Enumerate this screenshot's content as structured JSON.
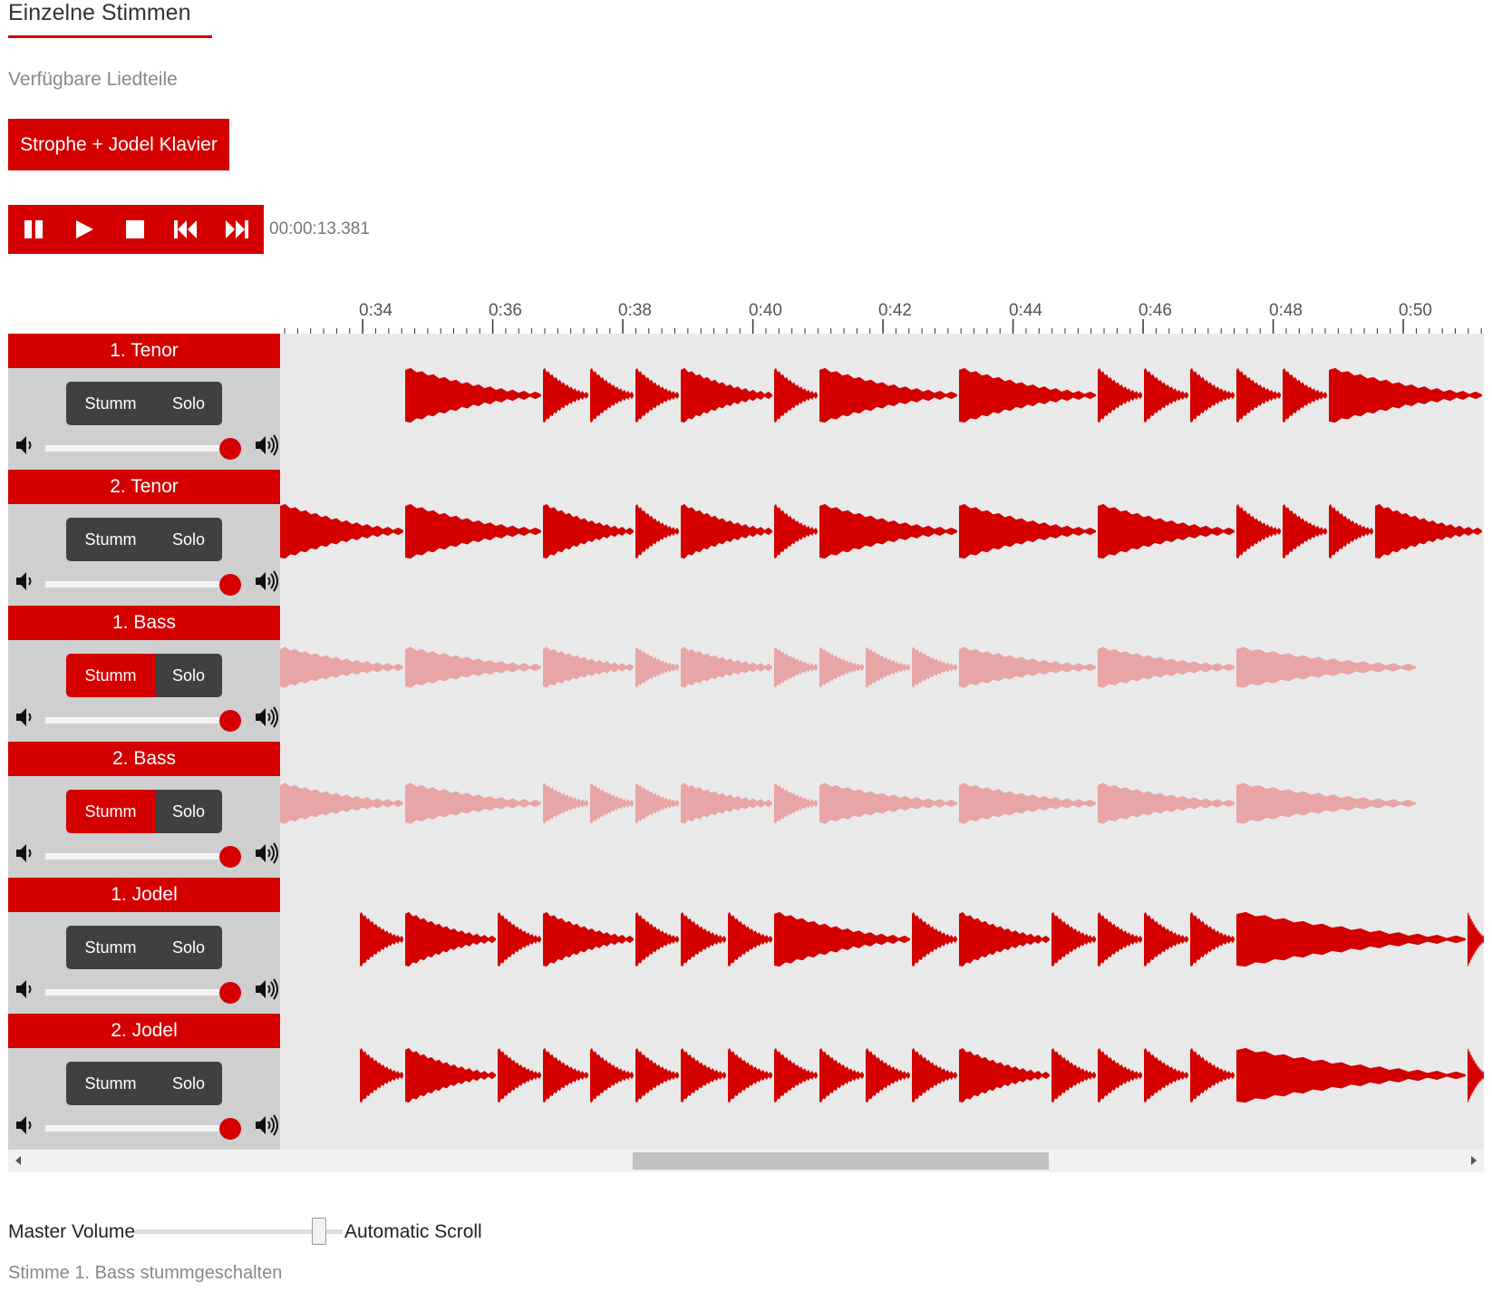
{
  "title": "Einzelne Stimmen",
  "subtitle": "Verfügbare Liedteile",
  "part_button": "Strophe + Jodel Klavier",
  "transport": {
    "buttons": [
      "pause-icon",
      "play-icon",
      "stop-icon",
      "skip-back-icon",
      "skip-forward-icon"
    ],
    "time": "00:00:13.381"
  },
  "timeline": {
    "labels": [
      "0:34",
      "0:36",
      "0:38",
      "0:40",
      "0:42",
      "0:44",
      "0:46",
      "0:48",
      "0:50"
    ]
  },
  "tracks": [
    {
      "name": "1. Tenor",
      "mute_label": "Stumm",
      "solo_label": "Solo",
      "muted": false,
      "volume": 1.0
    },
    {
      "name": "2. Tenor",
      "mute_label": "Stumm",
      "solo_label": "Solo",
      "muted": false,
      "volume": 1.0
    },
    {
      "name": "1. Bass",
      "mute_label": "Stumm",
      "solo_label": "Solo",
      "muted": true,
      "volume": 1.0
    },
    {
      "name": "2. Bass",
      "mute_label": "Stumm",
      "solo_label": "Solo",
      "muted": true,
      "volume": 1.0
    },
    {
      "name": "1. Jodel",
      "mute_label": "Stumm",
      "solo_label": "Solo",
      "muted": false,
      "volume": 1.0
    },
    {
      "name": "2. Jodel",
      "mute_label": "Stumm",
      "solo_label": "Solo",
      "muted": false,
      "volume": 1.0
    }
  ],
  "master": {
    "label": "Master Volume",
    "auto_scroll_label": "Automatic Scroll",
    "volume": 0.85
  },
  "status": "Stimme 1. Bass stummgeschalten",
  "colors": {
    "accent": "#d40000",
    "muted_wave": "#e8a5a5",
    "button_dark": "#404040",
    "track_bg": "#e9e9e9"
  }
}
